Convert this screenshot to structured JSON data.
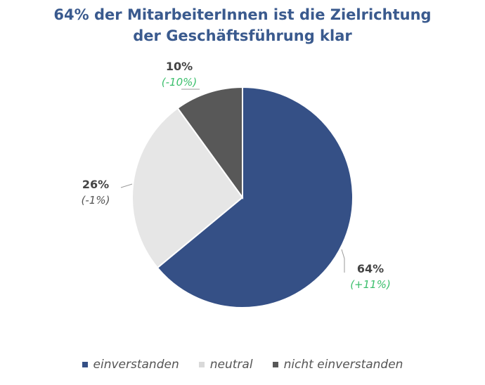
{
  "chart_data": {
    "type": "pie",
    "title_line1": "64% der MitarbeiterInnen ist die Zielrichtung",
    "title_line2": "der Geschäftsführung klar",
    "slices": [
      {
        "name": "einverstanden",
        "value": 64,
        "label": "64%",
        "change": "(+11%)",
        "color": "#355086",
        "change_color": "#3bbf6c"
      },
      {
        "name": "neutral",
        "value": 26,
        "label": "26%",
        "change": "(-1%)",
        "color": "#e6e6e6",
        "change_color": "#555555"
      },
      {
        "name": "nicht einverstanden",
        "value": 10,
        "label": "10%",
        "change": "(-10%)",
        "color": "#585858",
        "change_color": "#3bbf6c"
      }
    ],
    "legend_placement": "bottom"
  }
}
